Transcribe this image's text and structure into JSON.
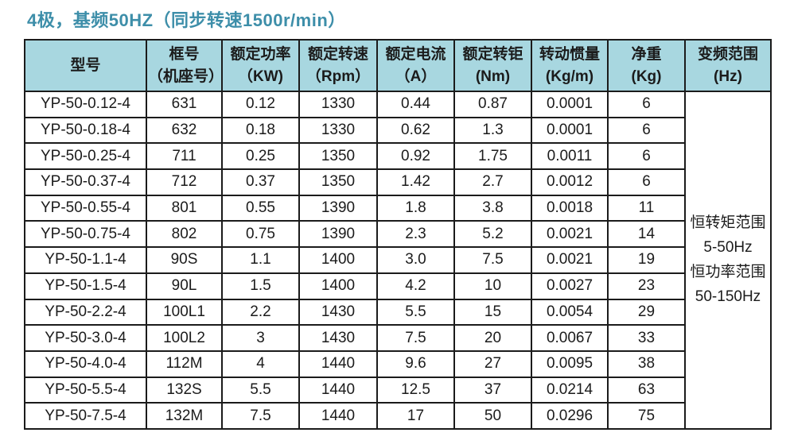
{
  "title": "4极，基频50HZ（同步转速1500r/min）",
  "colors": {
    "title_text": "#3d8ea9",
    "header_background": "#a8d7e0",
    "table_border": "#1b1b1b",
    "cell_background": "#ffffff"
  },
  "table": {
    "headers": [
      {
        "key": "model",
        "line1": "型号",
        "line2": ""
      },
      {
        "key": "frame",
        "line1": "框号",
        "line2": "（机座号）"
      },
      {
        "key": "power",
        "line1": "额定功率",
        "line2": "（KW)"
      },
      {
        "key": "speed",
        "line1": "额定转速",
        "line2": "（Rpm）"
      },
      {
        "key": "current",
        "line1": "额定电流",
        "line2": "（A）"
      },
      {
        "key": "torque",
        "line1": "额定转钜",
        "line2": "(Nm)"
      },
      {
        "key": "inertia",
        "line1": "转动惯量",
        "line2": "(Kg/m)"
      },
      {
        "key": "weight",
        "line1": "净重",
        "line2": "(Kg)"
      },
      {
        "key": "freq-range",
        "line1": "变频范围",
        "line2": "(Hz)"
      }
    ],
    "rows": [
      [
        "YP-50-0.12-4",
        "631",
        "0.12",
        "1330",
        "0.44",
        "0.87",
        "0.0001",
        "6"
      ],
      [
        "YP-50-0.18-4",
        "632",
        "0.18",
        "1330",
        "0.62",
        "1.3",
        "0.0001",
        "6"
      ],
      [
        "YP-50-0.25-4",
        "711",
        "0.25",
        "1350",
        "0.92",
        "1.75",
        "0.0011",
        "6"
      ],
      [
        "YP-50-0.37-4",
        "712",
        "0.37",
        "1350",
        "1.42",
        "2.7",
        "0.0012",
        "6"
      ],
      [
        "YP-50-0.55-4",
        "801",
        "0.55",
        "1390",
        "1.8",
        "3.8",
        "0.0018",
        "11"
      ],
      [
        "YP-50-0.75-4",
        "802",
        "0.75",
        "1390",
        "2.3",
        "5.2",
        "0.0021",
        "14"
      ],
      [
        "YP-50-1.1-4",
        "90S",
        "1.1",
        "1400",
        "3.0",
        "7.5",
        "0.0021",
        "19"
      ],
      [
        "YP-50-1.5-4",
        "90L",
        "1.5",
        "1400",
        "4.2",
        "10",
        "0.0027",
        "23"
      ],
      [
        "YP-50-2.2-4",
        "100L1",
        "2.2",
        "1430",
        "5.5",
        "15",
        "0.0054",
        "29"
      ],
      [
        "YP-50-3.0-4",
        "100L2",
        "3",
        "1430",
        "7.5",
        "20",
        "0.0067",
        "33"
      ],
      [
        "YP-50-4.0-4",
        "112M",
        "4",
        "1440",
        "9.6",
        "27",
        "0.0095",
        "38"
      ],
      [
        "YP-50-5.5-4",
        "132S",
        "5.5",
        "1440",
        "12.5",
        "37",
        "0.0214",
        "63"
      ],
      [
        "YP-50-7.5-4",
        "132M",
        "7.5",
        "1440",
        "17",
        "50",
        "0.0296",
        "75"
      ]
    ],
    "frequency_note": [
      "恒转矩范围",
      "5-50Hz",
      "恒功率范围",
      "50-150Hz"
    ]
  }
}
